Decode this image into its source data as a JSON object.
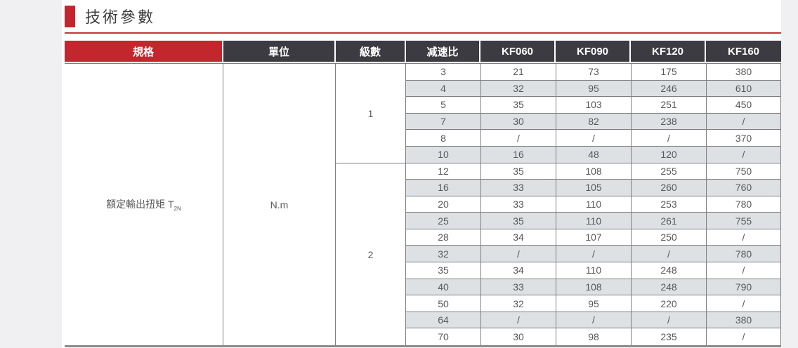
{
  "page": {
    "title": "技術參數"
  },
  "table": {
    "headers": [
      "規格",
      "單位",
      "級數",
      "减速比",
      "KF060",
      "KF090",
      "KF120",
      "KF160"
    ],
    "spec_label": "額定輸出扭矩 T",
    "spec_label_subscript": "2N",
    "unit": "N.m",
    "groups": [
      {
        "stage": "1",
        "rows": [
          [
            "3",
            "21",
            "73",
            "175",
            "380"
          ],
          [
            "4",
            "32",
            "95",
            "246",
            "610"
          ],
          [
            "5",
            "35",
            "103",
            "251",
            "450"
          ],
          [
            "7",
            "30",
            "82",
            "238",
            "/"
          ],
          [
            "8",
            "/",
            "/",
            "/",
            "370"
          ],
          [
            "10",
            "16",
            "48",
            "120",
            "/"
          ]
        ]
      },
      {
        "stage": "2",
        "rows": [
          [
            "12",
            "35",
            "108",
            "255",
            "750"
          ],
          [
            "16",
            "33",
            "105",
            "260",
            "760"
          ],
          [
            "20",
            "33",
            "110",
            "253",
            "780"
          ],
          [
            "25",
            "35",
            "110",
            "261",
            "755"
          ],
          [
            "28",
            "34",
            "107",
            "250",
            "/"
          ],
          [
            "32",
            "/",
            "/",
            "/",
            "780"
          ],
          [
            "35",
            "34",
            "110",
            "248",
            "/"
          ],
          [
            "40",
            "33",
            "108",
            "248",
            "790"
          ],
          [
            "50",
            "32",
            "95",
            "220",
            "/"
          ],
          [
            "64",
            "/",
            "/",
            "/",
            "380"
          ],
          [
            "70",
            "30",
            "98",
            "235",
            "/"
          ]
        ]
      }
    ]
  },
  "colors": {
    "accent_red": "#c4262d",
    "header_dark": "#3b3b41",
    "row_shaded": "#dde1e4",
    "border_gray": "#7e7e82"
  }
}
